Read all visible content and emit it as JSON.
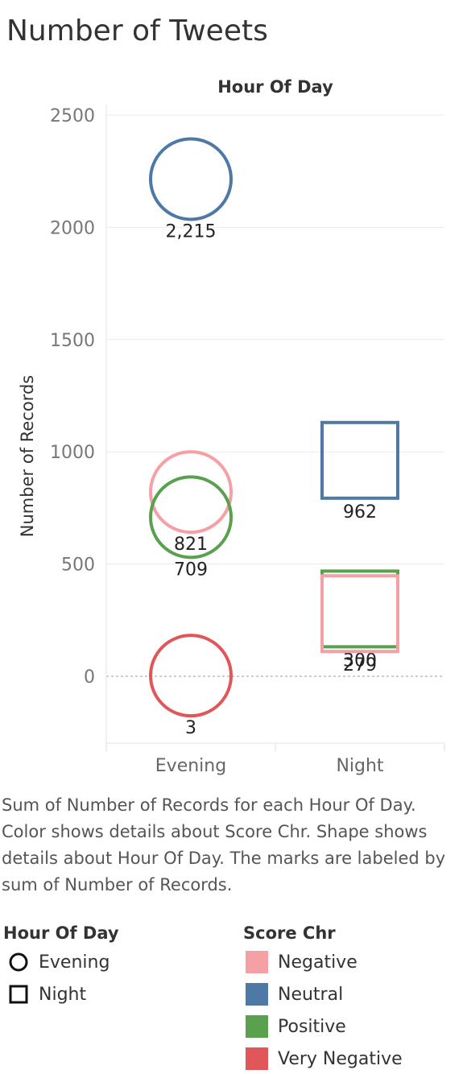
{
  "title": "Number of Tweets",
  "chart_data": {
    "type": "scatter",
    "column_header": "Hour Of Day",
    "ylabel": "Number of Records",
    "categories": [
      "Evening",
      "Night"
    ],
    "ylim": [
      -300,
      2500
    ],
    "yticks": [
      0,
      500,
      1000,
      1500,
      2000,
      2500
    ],
    "grid": true,
    "points": [
      {
        "category": "Evening",
        "shape": "circle",
        "series": "Neutral",
        "value": 2215,
        "label": "2,215"
      },
      {
        "category": "Evening",
        "shape": "circle",
        "series": "Negative",
        "value": 821,
        "label": "821"
      },
      {
        "category": "Evening",
        "shape": "circle",
        "series": "Positive",
        "value": 709,
        "label": "709"
      },
      {
        "category": "Evening",
        "shape": "circle",
        "series": "Very Negative",
        "value": 3,
        "label": "3"
      },
      {
        "category": "Night",
        "shape": "square",
        "series": "Neutral",
        "value": 962,
        "label": "962"
      },
      {
        "category": "Night",
        "shape": "square",
        "series": "Positive",
        "value": 300,
        "label": "300"
      },
      {
        "category": "Night",
        "shape": "square",
        "series": "Negative",
        "value": 279,
        "label": "279"
      }
    ],
    "colors": {
      "Negative": "#f4a0a4",
      "Neutral": "#4e79a7",
      "Positive": "#59a14f",
      "Very Negative": "#e15759"
    }
  },
  "caption": "Sum of Number of Records for each Hour Of Day.  Color shows details about Score Chr.  Shape shows details about Hour Of Day.  The marks are labeled by sum of Number of Records.",
  "legend": {
    "shape_title": "Hour Of Day",
    "shapes": [
      {
        "label": "Evening",
        "icon": "circle-icon"
      },
      {
        "label": "Night",
        "icon": "square-icon"
      }
    ],
    "color_title": "Score Chr",
    "colors": [
      {
        "label": "Negative",
        "color": "#f4a0a4"
      },
      {
        "label": "Neutral",
        "color": "#4e79a7"
      },
      {
        "label": "Positive",
        "color": "#59a14f"
      },
      {
        "label": "Very Negative",
        "color": "#e15759"
      }
    ]
  }
}
